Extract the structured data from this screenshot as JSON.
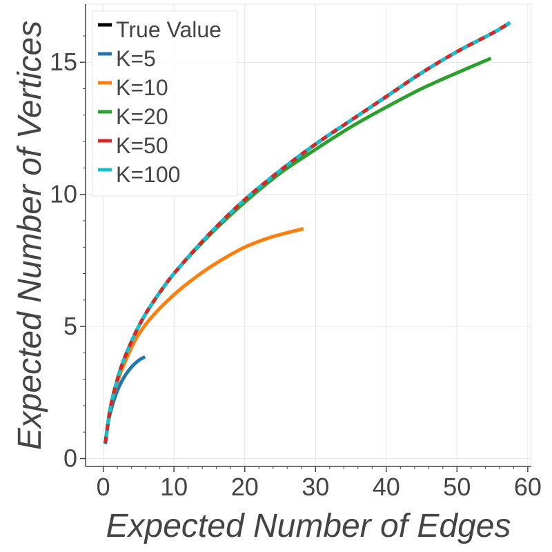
{
  "chart_data": {
    "type": "line",
    "xlabel": "Expected Number of Edges",
    "ylabel": "Expected Number of Vertices",
    "xlim": [
      -2.5,
      60.5
    ],
    "ylim": [
      -0.3,
      17.2
    ],
    "xticks": [
      0,
      10,
      20,
      30,
      40,
      50,
      60
    ],
    "yticks": [
      0,
      5,
      10,
      15
    ],
    "grid": true,
    "legend_position": "top-left",
    "series": [
      {
        "name": "True Value",
        "color": "#000000",
        "dashed": false,
        "x": [
          0.3,
          1,
          2,
          3,
          5,
          7,
          10,
          15,
          20,
          25,
          30,
          35,
          40,
          45,
          50,
          55,
          57.5
        ],
        "y": [
          0.6,
          1.9,
          3.0,
          3.8,
          5.0,
          5.9,
          7.0,
          8.5,
          9.8,
          10.9,
          11.9,
          12.8,
          13.7,
          14.6,
          15.4,
          16.1,
          16.5
        ]
      },
      {
        "name": "K=5",
        "color": "#1f77b4",
        "dashed": false,
        "x": [
          0.3,
          0.8,
          1.5,
          2.2,
          3,
          3.8,
          4.5,
          5.2,
          5.9
        ],
        "y": [
          0.55,
          1.5,
          2.2,
          2.7,
          3.1,
          3.4,
          3.6,
          3.75,
          3.85
        ]
      },
      {
        "name": "K=10",
        "color": "#ff7f0e",
        "dashed": false,
        "x": [
          0.3,
          1,
          2,
          3,
          4,
          5,
          7,
          10,
          13,
          16,
          20,
          24,
          28.3
        ],
        "y": [
          0.6,
          1.9,
          2.9,
          3.6,
          4.2,
          4.7,
          5.4,
          6.2,
          6.85,
          7.4,
          8.0,
          8.4,
          8.7
        ]
      },
      {
        "name": "K=20",
        "color": "#2ca02c",
        "dashed": false,
        "x": [
          0.3,
          1,
          2,
          3,
          5,
          7,
          10,
          15,
          20,
          25,
          30,
          35,
          40,
          45,
          50,
          54.8
        ],
        "y": [
          0.6,
          1.9,
          3.0,
          3.8,
          5.0,
          5.9,
          7.0,
          8.45,
          9.7,
          10.8,
          11.7,
          12.55,
          13.3,
          14.0,
          14.6,
          15.15
        ]
      },
      {
        "name": "K=50",
        "color": "#d62728",
        "dashed": true,
        "x": [
          0.3,
          1,
          2,
          3,
          5,
          7,
          10,
          15,
          20,
          25,
          30,
          35,
          40,
          45,
          50,
          55,
          57.5
        ],
        "y": [
          0.6,
          1.9,
          3.0,
          3.8,
          5.0,
          5.9,
          7.0,
          8.5,
          9.8,
          10.9,
          11.9,
          12.8,
          13.7,
          14.6,
          15.4,
          16.1,
          16.5
        ]
      },
      {
        "name": "K=100",
        "color": "#17becf",
        "dashed": true,
        "x": [
          0.3,
          1,
          2,
          3,
          5,
          7,
          10,
          15,
          20,
          25,
          30,
          35,
          40,
          45,
          50,
          55,
          57.5
        ],
        "y": [
          0.6,
          1.9,
          3.0,
          3.8,
          5.0,
          5.9,
          7.0,
          8.5,
          9.8,
          10.9,
          11.9,
          12.8,
          13.7,
          14.6,
          15.4,
          16.1,
          16.5
        ]
      }
    ]
  }
}
